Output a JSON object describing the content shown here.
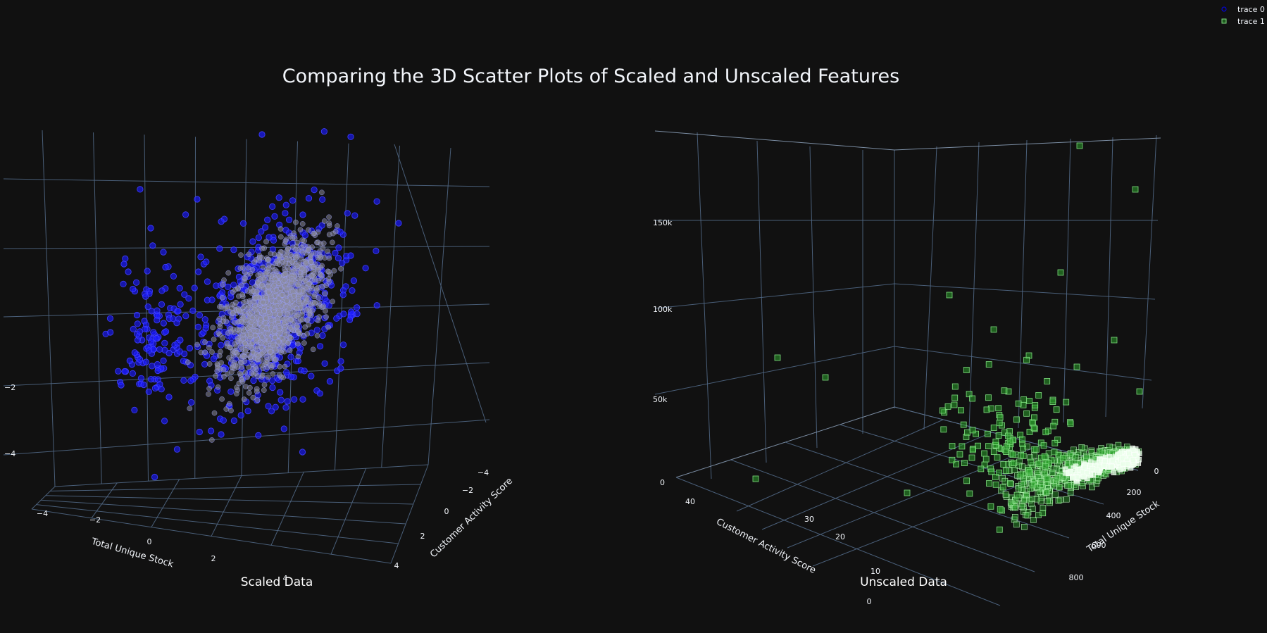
{
  "title": "Comparing the 3D Scatter Plots of Scaled and Unscaled Features",
  "legend": [
    {
      "name": "trace 0",
      "color": "#0000ff",
      "marker": "circle"
    },
    {
      "name": "trace 1",
      "color": "#2ca02c",
      "marker": "square"
    }
  ],
  "chart_data": [
    {
      "type": "scatter3d",
      "subtitle": "Scaled Data",
      "series_name": "trace 0",
      "marker_color": "#0000ff",
      "xlabel": "Total Unique Stock",
      "ylabel": "Customer Activity Score",
      "zlabel": "",
      "x_ticks": [
        "−4",
        "−2",
        "0",
        "2",
        "4"
      ],
      "y_ticks": [
        "−4",
        "−2",
        "0",
        "2",
        "4"
      ],
      "z_ticks": [
        "−4",
        "−2"
      ],
      "x_range": [
        -5,
        5
      ],
      "y_range": [
        -5,
        5
      ],
      "z_range": [
        -5,
        12
      ],
      "distribution": "dense elliptical cloud centered near origin, correlated, with outliers up to z≈12"
    },
    {
      "type": "scatter3d",
      "subtitle": "Unscaled Data",
      "series_name": "trace 1",
      "marker_color": "#2ca02c",
      "xlabel": "Customer Activity Score",
      "ylabel": "Total Unique Stock",
      "zlabel": "",
      "x_ticks": [
        "0",
        "10",
        "20",
        "30",
        "40"
      ],
      "y_ticks": [
        "0",
        "200",
        "400",
        "600",
        "800"
      ],
      "z_ticks": [
        "0",
        "50k",
        "100k",
        "150k"
      ],
      "x_range": [
        0,
        45
      ],
      "y_range": [
        0,
        900
      ],
      "z_range": [
        0,
        200000
      ],
      "distribution": "most points near origin, long tail to high values"
    }
  ]
}
